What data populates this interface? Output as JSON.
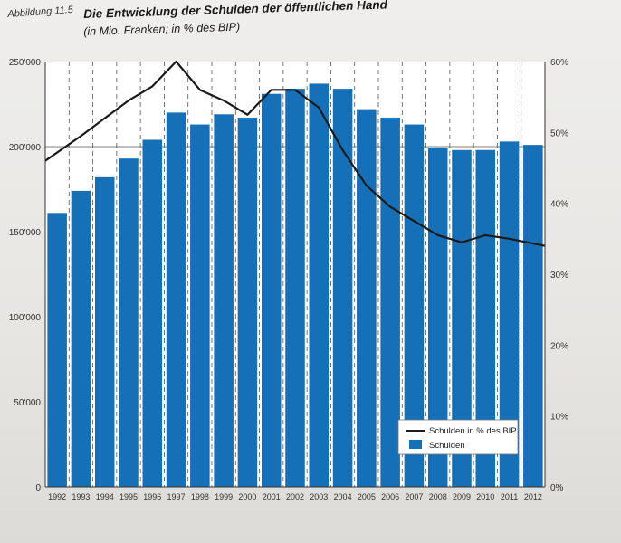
{
  "figure": {
    "label": "Abbildung 11.5",
    "title": "Die Entwicklung der Schulden der öffentlichen Hand",
    "subtitle": "(in Mio. Franken; in % des BIP)"
  },
  "colors": {
    "bar": "#1670b8",
    "line": "#1a1a1a",
    "plot_bg": "#ffffff"
  },
  "chart_data": {
    "type": "bar",
    "categories": [
      "1992",
      "1993",
      "1994",
      "1995",
      "1996",
      "1997",
      "1998",
      "1999",
      "2000",
      "2001",
      "2002",
      "2003",
      "2004",
      "2005",
      "2006",
      "2007",
      "2008",
      "2009",
      "2010",
      "2011",
      "2012"
    ],
    "series": [
      {
        "name": "Schulden",
        "type": "bar",
        "axis": "left",
        "values": [
          161000,
          174000,
          182000,
          193000,
          204000,
          220000,
          213000,
          219000,
          217000,
          231000,
          234000,
          237000,
          234000,
          222000,
          217000,
          213000,
          199000,
          198000,
          198000,
          203000,
          201000
        ]
      },
      {
        "name": "Schulden in % des BIP",
        "type": "line",
        "axis": "right",
        "values": [
          46.0,
          49.5,
          52.0,
          54.5,
          56.5,
          60.0,
          56.0,
          54.5,
          52.5,
          56.0,
          56.0,
          53.5,
          47.5,
          42.5,
          39.5,
          37.5,
          35.5,
          34.5,
          35.5,
          35.0,
          34.0
        ]
      }
    ],
    "y_left": {
      "min": 0,
      "max": 250000,
      "ticks": [
        "0",
        "50'000",
        "100'000",
        "150'000",
        "200'000",
        "250'000"
      ]
    },
    "y_right": {
      "min": 0,
      "max": 60,
      "ticks": [
        "0%",
        "10%",
        "20%",
        "30%",
        "40%",
        "50%",
        "60%"
      ]
    },
    "legend": {
      "position": "bottom-right",
      "entries": [
        "Schulden in % des BIP",
        "Schulden"
      ]
    },
    "grid": "vertical dashed"
  }
}
